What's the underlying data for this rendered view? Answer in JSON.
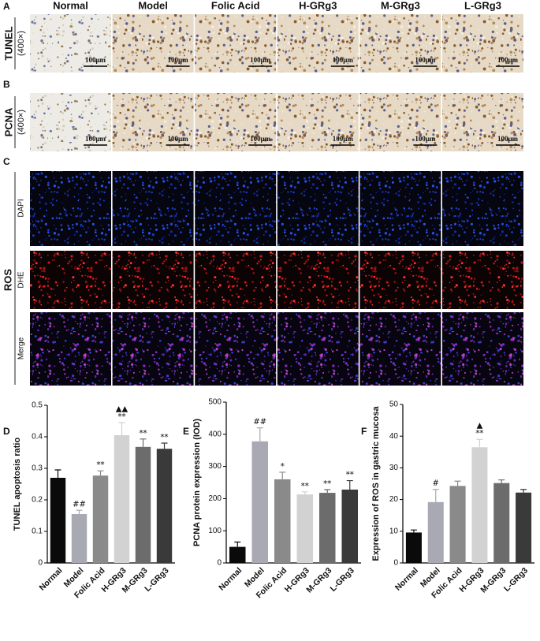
{
  "figure": {
    "columns": [
      "Normal",
      "Model",
      "Folic Acid",
      "H-GRg3",
      "M-GRg3",
      "L-GRg3"
    ],
    "row_a": {
      "label": "A",
      "stain": "TUNEL",
      "magnification": "(400×)"
    },
    "row_b": {
      "label": "B",
      "stain": "PCNA",
      "magnification": "(400×)"
    },
    "row_c": {
      "label": "C",
      "group": "ROS",
      "channels": [
        "DAPI",
        "DHE",
        "Merge"
      ]
    },
    "scale_bar": "100μm"
  },
  "chart_data": [
    {
      "type": "bar",
      "panel": "D",
      "ylabel": "TUNEL apoptosis ratio",
      "categories": [
        "Normal",
        "Model",
        "Folic Acid",
        "H-GRg3",
        "M-GRg3",
        "L-GRg3"
      ],
      "values": [
        0.27,
        0.155,
        0.277,
        0.405,
        0.368,
        0.362
      ],
      "errors": [
        0.025,
        0.012,
        0.015,
        0.04,
        0.025,
        0.018
      ],
      "colors": [
        "#0a0a0a",
        "#a9a9b4",
        "#8a8a8a",
        "#d2d2d2",
        "#6c6c6c",
        "#3a3a3a"
      ],
      "annotations": [
        null,
        [
          "##"
        ],
        [
          "**"
        ],
        [
          "▲▲",
          "**"
        ],
        [
          "**"
        ],
        [
          "**"
        ]
      ],
      "ylim": [
        0,
        0.5
      ],
      "yticks": [
        0,
        0.1,
        0.2,
        0.3,
        0.4,
        0.5
      ]
    },
    {
      "type": "bar",
      "panel": "E",
      "ylabel": "PCNA protein expression (IOD)",
      "categories": [
        "Normal",
        "Model",
        "Folic Acid",
        "H-GRg3",
        "M-GRg3",
        "L-GRg3"
      ],
      "values": [
        50,
        378,
        260,
        213,
        218,
        228
      ],
      "errors": [
        15,
        42,
        22,
        8,
        10,
        28
      ],
      "colors": [
        "#0a0a0a",
        "#a9a9b4",
        "#8a8a8a",
        "#d2d2d2",
        "#6c6c6c",
        "#3a3a3a"
      ],
      "annotations": [
        null,
        [
          "##"
        ],
        [
          "*"
        ],
        [
          "**"
        ],
        [
          "**"
        ],
        [
          "**"
        ]
      ],
      "ylim": [
        0,
        500
      ],
      "yticks": [
        0,
        100,
        200,
        300,
        400,
        500
      ]
    },
    {
      "type": "bar",
      "panel": "F",
      "ylabel": "Expression of ROS in gastric mucosa",
      "categories": [
        "Normal",
        "Model",
        "Folic Acid",
        "H-GRg3",
        "M-GRg3",
        "L-GRg3"
      ],
      "values": [
        9.6,
        19.2,
        24.3,
        36.5,
        25.2,
        22.2
      ],
      "errors": [
        0.8,
        4,
        1.5,
        2.5,
        1,
        1
      ],
      "colors": [
        "#0a0a0a",
        "#a9a9b4",
        "#8a8a8a",
        "#d2d2d2",
        "#6c6c6c",
        "#3a3a3a"
      ],
      "annotations": [
        null,
        [
          "#"
        ],
        null,
        [
          "▲",
          "**"
        ],
        null,
        null
      ],
      "ylim": [
        0,
        50
      ],
      "yticks": [
        0,
        10,
        20,
        30,
        40,
        50
      ]
    }
  ]
}
